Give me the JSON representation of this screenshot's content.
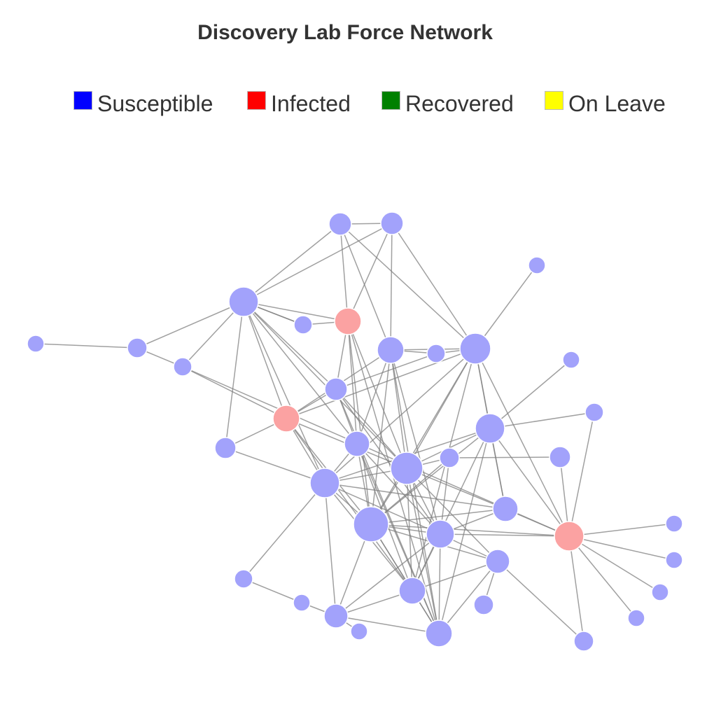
{
  "chart_data": {
    "type": "force-network",
    "title": "Discovery Lab Force Network",
    "legend": [
      {
        "label": "Susceptible",
        "color": "#0000ff"
      },
      {
        "label": "Infected",
        "color": "#ff0000"
      },
      {
        "label": "Recovered",
        "color": "#008000"
      },
      {
        "label": "On Leave",
        "color": "#ffff00"
      }
    ],
    "node_fill": {
      "Susceptible": "#a2a2fb",
      "Infected": "#fba2a2",
      "Recovered": "#a2d0a2",
      "On Leave": "#fbfba2"
    },
    "edge_color": "#808080",
    "node_count": 43,
    "nodes": [
      {
        "id": 0,
        "status": "Susceptible"
      },
      {
        "id": 1,
        "status": "Susceptible"
      },
      {
        "id": 2,
        "status": "Susceptible"
      },
      {
        "id": 3,
        "status": "Susceptible"
      },
      {
        "id": 4,
        "status": "Susceptible"
      },
      {
        "id": 5,
        "status": "Susceptible"
      },
      {
        "id": 6,
        "status": "Susceptible"
      },
      {
        "id": 7,
        "status": "Infected"
      },
      {
        "id": 8,
        "status": "Susceptible"
      },
      {
        "id": 9,
        "status": "Susceptible"
      },
      {
        "id": 10,
        "status": "Susceptible"
      },
      {
        "id": 11,
        "status": "Susceptible"
      },
      {
        "id": 12,
        "status": "Susceptible"
      },
      {
        "id": 13,
        "status": "Infected"
      },
      {
        "id": 14,
        "status": "Susceptible"
      },
      {
        "id": 15,
        "status": "Susceptible"
      },
      {
        "id": 16,
        "status": "Susceptible"
      },
      {
        "id": 17,
        "status": "Susceptible"
      },
      {
        "id": 18,
        "status": "Susceptible"
      },
      {
        "id": 19,
        "status": "Susceptible"
      },
      {
        "id": 20,
        "status": "Susceptible"
      },
      {
        "id": 21,
        "status": "Susceptible"
      },
      {
        "id": 22,
        "status": "Susceptible"
      },
      {
        "id": 23,
        "status": "Susceptible"
      },
      {
        "id": 24,
        "status": "Susceptible"
      },
      {
        "id": 25,
        "status": "Susceptible"
      },
      {
        "id": 26,
        "status": "Infected"
      },
      {
        "id": 27,
        "status": "Susceptible"
      },
      {
        "id": 28,
        "status": "Susceptible"
      },
      {
        "id": 29,
        "status": "Susceptible"
      },
      {
        "id": 30,
        "status": "Susceptible"
      },
      {
        "id": 31,
        "status": "Susceptible"
      },
      {
        "id": 32,
        "status": "Susceptible"
      },
      {
        "id": 33,
        "status": "Susceptible"
      },
      {
        "id": 34,
        "status": "Susceptible"
      },
      {
        "id": 35,
        "status": "Susceptible"
      },
      {
        "id": 36,
        "status": "Susceptible"
      },
      {
        "id": 37,
        "status": "Susceptible"
      },
      {
        "id": 38,
        "status": "Susceptible"
      },
      {
        "id": 39,
        "status": "Susceptible"
      },
      {
        "id": 40,
        "status": "Susceptible"
      },
      {
        "id": 41,
        "status": "Susceptible"
      },
      {
        "id": 42,
        "status": "Susceptible"
      }
    ],
    "edges": [
      [
        0,
        1
      ],
      [
        0,
        2
      ],
      [
        0,
        7
      ],
      [
        0,
        8
      ],
      [
        0,
        9
      ],
      [
        1,
        4
      ],
      [
        1,
        6
      ],
      [
        1,
        7
      ],
      [
        1,
        2
      ],
      [
        1,
        8
      ],
      [
        2,
        7
      ],
      [
        2,
        8
      ],
      [
        2,
        20
      ],
      [
        2,
        5
      ],
      [
        2,
        6
      ],
      [
        2,
        15
      ],
      [
        2,
        18
      ],
      [
        2,
        10
      ],
      [
        2,
        11
      ],
      [
        2,
        16
      ],
      [
        2,
        3
      ],
      [
        2,
        12
      ],
      [
        2,
        21
      ],
      [
        3,
        4
      ],
      [
        4,
        5
      ],
      [
        5,
        16
      ],
      [
        5,
        18
      ],
      [
        6,
        9
      ],
      [
        6,
        7
      ],
      [
        7,
        12
      ],
      [
        7,
        13
      ],
      [
        7,
        15
      ],
      [
        7,
        16
      ],
      [
        7,
        18
      ],
      [
        8,
        9
      ],
      [
        8,
        10
      ],
      [
        8,
        11
      ],
      [
        8,
        12
      ],
      [
        8,
        13
      ],
      [
        8,
        14
      ],
      [
        8,
        15
      ],
      [
        8,
        16
      ],
      [
        8,
        18
      ],
      [
        8,
        19
      ],
      [
        8,
        20
      ],
      [
        8,
        22
      ],
      [
        11,
        13
      ],
      [
        11,
        14
      ],
      [
        11,
        16
      ],
      [
        11,
        17
      ],
      [
        11,
        19
      ],
      [
        11,
        20
      ],
      [
        12,
        13
      ],
      [
        12,
        14
      ],
      [
        12,
        15
      ],
      [
        12,
        16
      ],
      [
        12,
        18
      ],
      [
        12,
        19
      ],
      [
        12,
        20
      ],
      [
        12,
        21
      ],
      [
        13,
        14
      ],
      [
        13,
        15
      ],
      [
        13,
        16
      ],
      [
        13,
        17
      ],
      [
        13,
        18
      ],
      [
        14,
        15
      ],
      [
        14,
        16
      ],
      [
        14,
        18
      ],
      [
        14,
        19
      ],
      [
        14,
        20
      ],
      [
        14,
        25
      ],
      [
        14,
        30
      ],
      [
        15,
        16
      ],
      [
        15,
        17
      ],
      [
        15,
        18
      ],
      [
        15,
        20
      ],
      [
        15,
        22
      ],
      [
        15,
        23
      ],
      [
        16,
        17
      ],
      [
        16,
        18
      ],
      [
        16,
        19
      ],
      [
        16,
        20
      ],
      [
        16,
        21
      ],
      [
        16,
        23
      ],
      [
        16,
        24
      ],
      [
        17,
        18
      ],
      [
        17,
        21
      ],
      [
        17,
        22
      ],
      [
        18,
        19
      ],
      [
        18,
        20
      ],
      [
        18,
        21
      ],
      [
        18,
        23
      ],
      [
        18,
        24
      ],
      [
        18,
        25
      ],
      [
        19,
        20
      ],
      [
        19,
        21
      ],
      [
        19,
        22
      ],
      [
        19,
        23
      ],
      [
        19,
        24
      ],
      [
        19,
        25
      ],
      [
        20,
        21
      ],
      [
        20,
        22
      ],
      [
        20,
        23
      ],
      [
        20,
        24
      ],
      [
        20,
        25
      ],
      [
        20,
        27
      ],
      [
        20,
        28
      ],
      [
        21,
        22
      ],
      [
        21,
        24
      ],
      [
        21,
        25
      ],
      [
        21,
        26
      ],
      [
        22,
        25
      ],
      [
        22,
        26
      ],
      [
        24,
        25
      ],
      [
        26,
        29
      ],
      [
        26,
        30
      ],
      [
        26,
        31
      ],
      [
        26,
        32
      ],
      [
        26,
        33
      ],
      [
        26,
        34
      ],
      [
        23,
        26
      ],
      [
        23,
        27
      ],
      [
        22,
        28
      ],
      [
        28,
        35
      ],
      [
        28,
        36
      ],
      [
        28,
        37
      ],
      [
        28,
        38
      ],
      [
        28,
        39
      ],
      [
        35,
        36
      ],
      [
        36,
        38
      ],
      [
        37,
        38
      ],
      [
        38,
        28
      ],
      [
        40,
        29
      ],
      [
        41,
        38
      ],
      [
        42,
        22
      ],
      [
        9,
        40
      ],
      [
        9,
        41
      ],
      [
        3,
        41
      ]
    ]
  }
}
